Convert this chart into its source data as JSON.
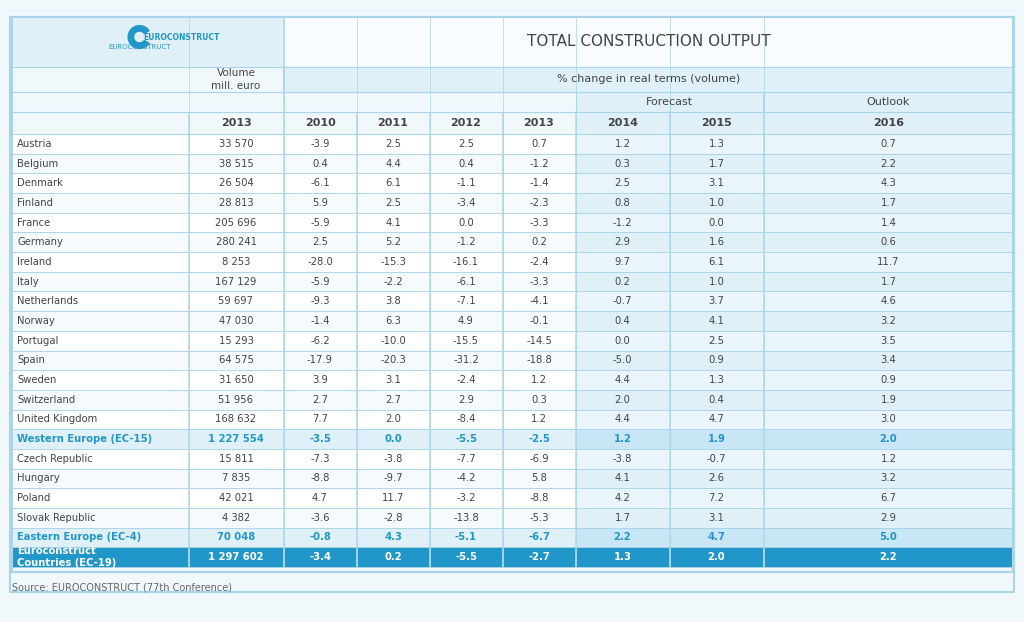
{
  "title": "TOTAL CONSTRUCTION OUTPUT",
  "subtitle_col1": "Volume\nmill. euro",
  "subtitle_col2": "% change in real terms (volume)",
  "subtitle_forecast": "Forecast",
  "subtitle_outlook": "Outlook",
  "year_header": [
    "2013",
    "2010",
    "2011",
    "2012",
    "2013",
    "2014",
    "2015",
    "2016"
  ],
  "countries": [
    "Austria",
    "Belgium",
    "Denmark",
    "Finland",
    "France",
    "Germany",
    "Ireland",
    "Italy",
    "Netherlands",
    "Norway",
    "Portugal",
    "Spain",
    "Sweden",
    "Switzerland",
    "United Kingdom",
    "Western Europe (EC-15)",
    "Czech Republic",
    "Hungary",
    "Poland",
    "Slovak Republic",
    "Eastern Europe (EC-4)",
    "Euroconstruct\nCountries (EC-19)"
  ],
  "data": [
    [
      "33 570",
      "-3.9",
      "2.5",
      "2.5",
      "0.7",
      "1.2",
      "1.3",
      "0.7"
    ],
    [
      "38 515",
      "0.4",
      "4.4",
      "0.4",
      "-1.2",
      "0.3",
      "1.7",
      "2.2"
    ],
    [
      "26 504",
      "-6.1",
      "6.1",
      "-1.1",
      "-1.4",
      "2.5",
      "3.1",
      "4.3"
    ],
    [
      "28 813",
      "5.9",
      "2.5",
      "-3.4",
      "-2.3",
      "0.8",
      "1.0",
      "1.7"
    ],
    [
      "205 696",
      "-5.9",
      "4.1",
      "0.0",
      "-3.3",
      "-1.2",
      "0.0",
      "1.4"
    ],
    [
      "280 241",
      "2.5",
      "5.2",
      "-1.2",
      "0.2",
      "2.9",
      "1.6",
      "0.6"
    ],
    [
      "8 253",
      "-28.0",
      "-15.3",
      "-16.1",
      "-2.4",
      "9.7",
      "6.1",
      "11.7"
    ],
    [
      "167 129",
      "-5.9",
      "-2.2",
      "-6.1",
      "-3.3",
      "0.2",
      "1.0",
      "1.7"
    ],
    [
      "59 697",
      "-9.3",
      "3.8",
      "-7.1",
      "-4.1",
      "-0.7",
      "3.7",
      "4.6"
    ],
    [
      "47 030",
      "-1.4",
      "6.3",
      "4.9",
      "-0.1",
      "0.4",
      "4.1",
      "3.2"
    ],
    [
      "15 293",
      "-6.2",
      "-10.0",
      "-15.5",
      "-14.5",
      "0.0",
      "2.5",
      "3.5"
    ],
    [
      "64 575",
      "-17.9",
      "-20.3",
      "-31.2",
      "-18.8",
      "-5.0",
      "0.9",
      "3.4"
    ],
    [
      "31 650",
      "3.9",
      "3.1",
      "-2.4",
      "1.2",
      "4.4",
      "1.3",
      "0.9"
    ],
    [
      "51 956",
      "2.7",
      "2.7",
      "2.9",
      "0.3",
      "2.0",
      "0.4",
      "1.9"
    ],
    [
      "168 632",
      "7.7",
      "2.0",
      "-8.4",
      "1.2",
      "4.4",
      "4.7",
      "3.0"
    ],
    [
      "1 227 554",
      "-3.5",
      "0.0",
      "-5.5",
      "-2.5",
      "1.2",
      "1.9",
      "2.0"
    ],
    [
      "15 811",
      "-7.3",
      "-3.8",
      "-7.7",
      "-6.9",
      "-3.8",
      "-0.7",
      "1.2"
    ],
    [
      "7 835",
      "-8.8",
      "-9.7",
      "-4.2",
      "5.8",
      "4.1",
      "2.6",
      "3.2"
    ],
    [
      "42 021",
      "4.7",
      "11.7",
      "-3.2",
      "-8.8",
      "4.2",
      "7.2",
      "6.7"
    ],
    [
      "4 382",
      "-3.6",
      "-2.8",
      "-13.8",
      "-5.3",
      "1.7",
      "3.1",
      "2.9"
    ],
    [
      "70 048",
      "-0.8",
      "4.3",
      "-5.1",
      "-6.7",
      "2.2",
      "4.7",
      "5.0"
    ],
    [
      "1 297 602",
      "-3.4",
      "0.2",
      "-5.5",
      "-2.7",
      "1.3",
      "2.0",
      "2.2"
    ]
  ],
  "row_types": [
    "normal",
    "normal",
    "normal",
    "normal",
    "normal",
    "normal",
    "normal",
    "normal",
    "normal",
    "normal",
    "normal",
    "normal",
    "normal",
    "normal",
    "normal",
    "subtotal_blue_text",
    "normal",
    "normal",
    "normal",
    "normal",
    "subtotal_blue_text",
    "total_blue_bg"
  ],
  "bg_color_light": "#dff0f8",
  "bg_color_white": "#ffffff",
  "bg_color_header": "#dff0f8",
  "bg_color_total": "#2196C8",
  "text_color_blue": "#2196C8",
  "text_color_dark": "#444444",
  "text_color_white": "#ffffff",
  "border_color": "#aad4e8",
  "source_text": "Source: EUROCONSTRUCT (77th Conference)"
}
